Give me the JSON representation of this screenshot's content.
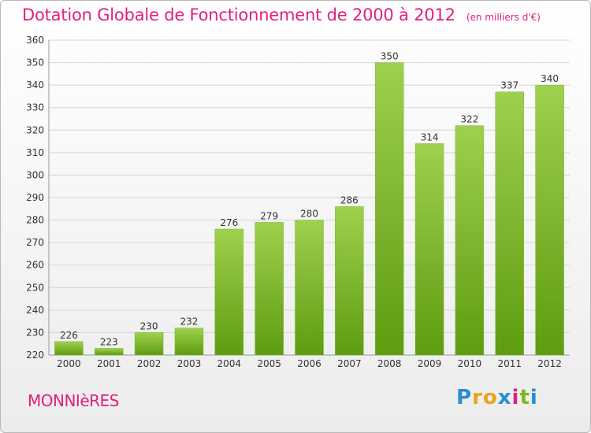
{
  "header": {
    "title": "Dotation Globale de Fonctionnement de 2000 à 2012",
    "subtitle": "(en milliers d'€)"
  },
  "footer": {
    "commune": "MONNIèRES",
    "logo": {
      "letters": [
        "P",
        "r",
        "o",
        "x",
        "i",
        "t",
        "i"
      ],
      "colors": [
        "#2a8dd4",
        "#e8a31c",
        "#e8a31c",
        "#2a8dd4",
        "#e0207e",
        "#7ab829",
        "#2a8dd4"
      ]
    }
  },
  "colors": {
    "bar_top": "#9fd04e",
    "bar_bottom": "#5e9c10",
    "grid": "#d6d6d6",
    "axis": "#999999",
    "accent": "#e0207e"
  },
  "chart_data": {
    "type": "bar",
    "categories": [
      "2000",
      "2001",
      "2002",
      "2003",
      "2004",
      "2005",
      "2006",
      "2007",
      "2008",
      "2009",
      "2010",
      "2011",
      "2012"
    ],
    "values": [
      226,
      223,
      230,
      232,
      276,
      279,
      280,
      286,
      350,
      314,
      322,
      337,
      340
    ],
    "title": "Dotation Globale de Fonctionnement de 2000 à 2012",
    "subtitle": "(en milliers d'€)",
    "ylim": [
      220,
      360
    ],
    "yticks": [
      220,
      230,
      240,
      250,
      260,
      270,
      280,
      290,
      300,
      310,
      320,
      330,
      340,
      350,
      360
    ],
    "grid": true
  }
}
